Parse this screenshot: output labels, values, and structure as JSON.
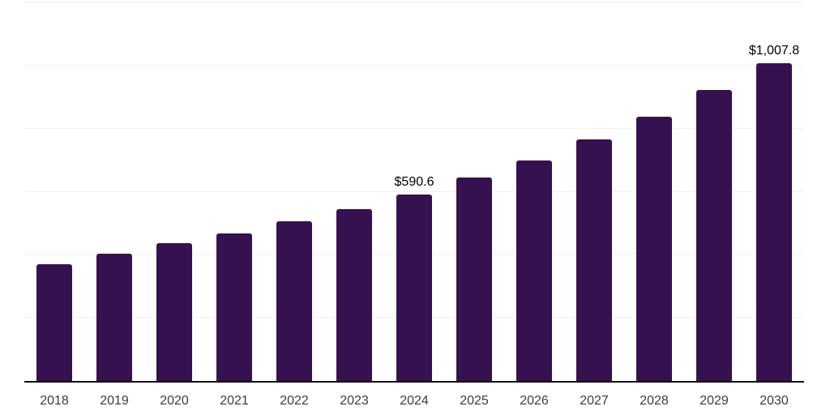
{
  "chart_data": {
    "type": "bar",
    "title": "",
    "xlabel": "",
    "ylabel": "",
    "categories": [
      "2018",
      "2019",
      "2020",
      "2021",
      "2022",
      "2023",
      "2024",
      "2025",
      "2026",
      "2027",
      "2028",
      "2029",
      "2030"
    ],
    "values": [
      369.4,
      402.5,
      435.7,
      467.3,
      505.3,
      544.4,
      590.6,
      644.6,
      698.9,
      766.9,
      837.4,
      921.5,
      1007.8
    ],
    "data_labels": [
      "",
      "",
      "",
      "",
      "",
      "",
      "$590.6",
      "",
      "",
      "",
      "",
      "",
      "$1,007.8"
    ],
    "ylim": [
      0,
      1200
    ],
    "gridline_step": 200,
    "grid": "horizontal-only",
    "y_tick_labels_visible": false,
    "legend": "none",
    "colors": {
      "bar": "#36114F",
      "gridline": "#F0F0F0",
      "axis_line": "#111111",
      "data_label_text": "#000000",
      "tick_label_text": "#3C3C3C",
      "background": "#FFFFFF"
    }
  }
}
